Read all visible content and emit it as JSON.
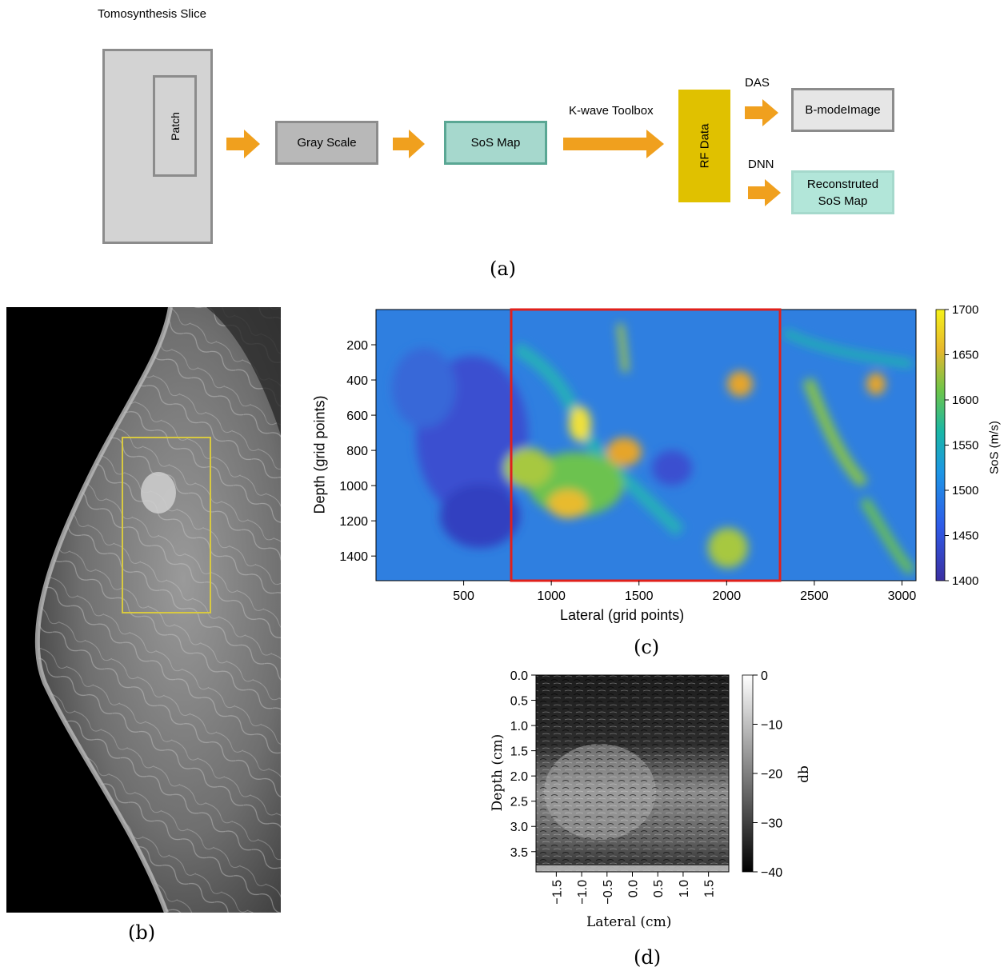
{
  "panel_a": {
    "slice_title": "Tomosynthesis Slice",
    "patch_label": "Patch",
    "gray_scale": "Gray Scale",
    "sos_map": "SoS Map",
    "kwave_label": "K-wave Toolbox",
    "rf_data": "RF Data",
    "das_label": "DAS",
    "dnn_label": "DNN",
    "bmode_image": "B-modeImage",
    "reconstructed": "Reconstruted SoS Map",
    "colors": {
      "slice_fill": "#d3d3d3",
      "slice_border": "#8c8c8c",
      "gray_fill": "#b8b8b8",
      "sos_fill": "#a6d8cd",
      "sos_border": "#5aa794",
      "rf_fill": "#e0c100",
      "bmode_fill": "#e6e6e6",
      "recon_fill": "#b2e6d9",
      "recon_border": "#a5d9cc",
      "arrow": "#f0a01e"
    }
  },
  "captions": {
    "a": "(a)",
    "b": "(b)",
    "c": "(c)",
    "d": "(d)"
  },
  "panel_c": {
    "xlabel": "Lateral (grid points)",
    "ylabel": "Depth (grid points)",
    "cbar_label": "SoS (m/s)",
    "x_ticks": [
      "500",
      "1000",
      "1500",
      "2000",
      "2500",
      "3000"
    ],
    "y_ticks": [
      "200",
      "400",
      "600",
      "800",
      "1000",
      "1200",
      "1400"
    ],
    "cbar_ticks": [
      "1700",
      "1650",
      "1600",
      "1550",
      "1500",
      "1450",
      "1400"
    ],
    "highlight_color": "#e0201b"
  },
  "panel_d": {
    "xlabel": "Lateral (cm)",
    "ylabel": "Depth (cm)",
    "cbar_label": "db",
    "x_ticks": [
      "−1.5",
      "−1.0",
      "−0.5",
      "0.0",
      "0.5",
      "1.0",
      "1.5"
    ],
    "y_ticks": [
      "0.0",
      "0.5",
      "1.0",
      "1.5",
      "2.0",
      "2.5",
      "3.0",
      "3.5"
    ],
    "cbar_ticks": [
      "0",
      "−10",
      "−20",
      "−30",
      "−40"
    ]
  },
  "chart_data": [
    {
      "type": "heatmap",
      "title": "",
      "xlabel": "Lateral (grid points)",
      "ylabel": "Depth (grid points)",
      "xlim": [
        0,
        3080
      ],
      "ylim": [
        1540,
        0
      ],
      "x_ticks": [
        500,
        1000,
        1500,
        2000,
        2500,
        3000
      ],
      "y_ticks": [
        200,
        400,
        600,
        800,
        1000,
        1200,
        1400
      ],
      "colorbar": {
        "label": "SoS (m/s)",
        "range": [
          1400,
          1700
        ],
        "colormap": "viridis-like"
      },
      "highlight_region": {
        "x": [
          770,
          2310
        ],
        "y": [
          0,
          1540
        ]
      }
    },
    {
      "type": "heatmap",
      "title": "",
      "xlabel": "Lateral (cm)",
      "ylabel": "Depth (cm)",
      "xlim": [
        -1.9,
        1.9
      ],
      "ylim": [
        3.9,
        0.0
      ],
      "x_ticks": [
        -1.5,
        -1.0,
        -0.5,
        0.0,
        0.5,
        1.0,
        1.5
      ],
      "y_ticks": [
        0.0,
        0.5,
        1.0,
        1.5,
        2.0,
        2.5,
        3.0,
        3.5
      ],
      "colorbar": {
        "label": "db",
        "range": [
          -40,
          0
        ],
        "colormap": "gray"
      }
    }
  ]
}
